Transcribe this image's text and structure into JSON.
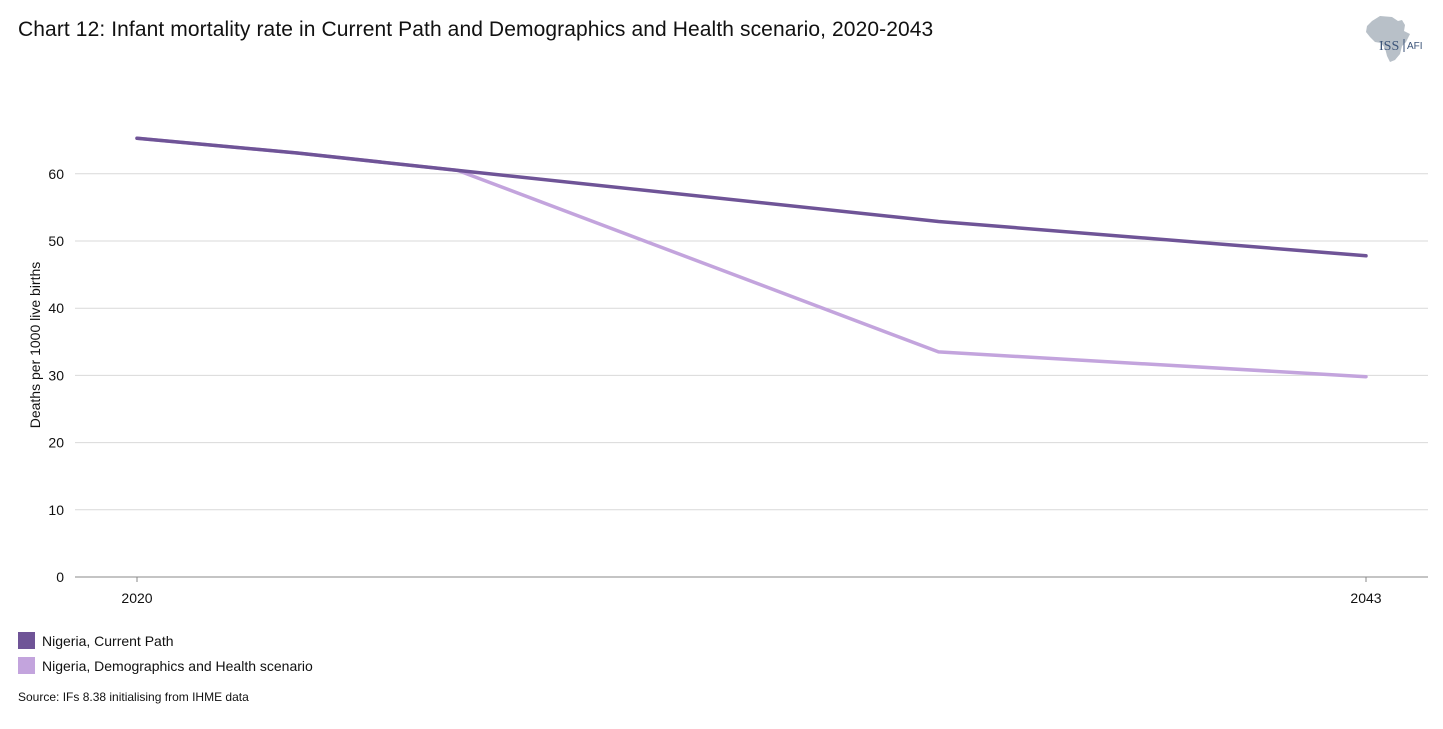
{
  "title": "Chart 12: Infant mortality rate in Current Path and Demographics and Health scenario, 2020-2043",
  "logo": {
    "text_main": "ISS",
    "text_sub": "AFI",
    "icon": "africa-map-icon",
    "colors": {
      "map": "#b8c0c8",
      "text_main": "#3b5378",
      "text_sub": "#3b5378"
    }
  },
  "source": "Source: IFs 8.38 initialising from IHME data",
  "chart_data": {
    "type": "line",
    "title": "Chart 12: Infant mortality rate in Current Path and Demographics and Health scenario, 2020-2043",
    "xlabel": "",
    "ylabel": "Deaths per 1000 live births",
    "x": [
      2020,
      2023,
      2026,
      2035,
      2043
    ],
    "x_tick_labels": [
      "2020",
      "2043"
    ],
    "xlim": [
      2020,
      2043
    ],
    "ylim": [
      0,
      70
    ],
    "y_ticks": [
      0,
      10,
      20,
      30,
      40,
      50,
      60
    ],
    "grid": true,
    "legend_position": "bottom-left",
    "series": [
      {
        "name": "Nigeria, Current Path",
        "color": "#6f5497",
        "values": [
          65.3,
          63.1,
          60.5,
          52.9,
          47.8
        ]
      },
      {
        "name": "Nigeria, Demographics and Health scenario",
        "color": "#c3a4dd",
        "values": [
          65.3,
          63.1,
          60.5,
          33.5,
          29.8
        ]
      }
    ]
  }
}
